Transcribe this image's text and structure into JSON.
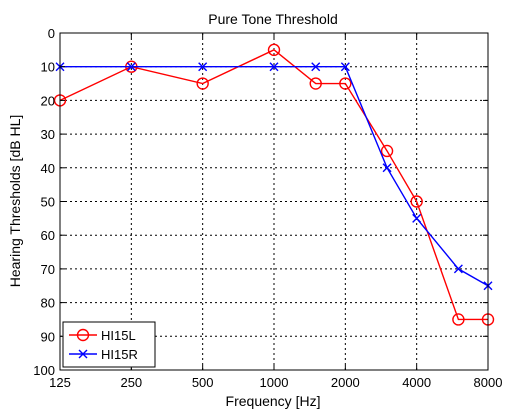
{
  "chart_data": {
    "type": "line",
    "title": "Pure Tone Threshold",
    "xlabel": "Frequency [Hz]",
    "ylabel": "Hearing Thresholds [dB HL]",
    "x_scale": "log2",
    "x_ticks": [
      125,
      250,
      500,
      1000,
      2000,
      4000,
      8000
    ],
    "x_tick_labels": [
      "125",
      "250",
      "500",
      "1000",
      "2000",
      "4000",
      "8000"
    ],
    "xlim": [
      125,
      8000
    ],
    "y_inverted": true,
    "ylim": [
      0,
      100
    ],
    "y_ticks": [
      0,
      10,
      20,
      30,
      40,
      50,
      60,
      70,
      80,
      90,
      100
    ],
    "y_tick_labels": [
      "0",
      "10",
      "20",
      "30",
      "40",
      "50",
      "60",
      "70",
      "80",
      "90",
      "100"
    ],
    "grid": true,
    "legend_position": "bottom-left",
    "series": [
      {
        "name": "HI15L",
        "color": "#ff0000",
        "marker": "circle",
        "x": [
          125,
          250,
          500,
          1000,
          1500,
          2000,
          3000,
          4000,
          6000,
          8000
        ],
        "y": [
          20,
          10,
          15,
          5,
          15,
          15,
          35,
          50,
          85,
          85
        ]
      },
      {
        "name": "HI15R",
        "color": "#0000ff",
        "marker": "x",
        "x": [
          125,
          250,
          500,
          1000,
          1500,
          2000,
          3000,
          4000,
          6000,
          8000
        ],
        "y": [
          10,
          10,
          10,
          10,
          10,
          10,
          40,
          55,
          70,
          75
        ]
      }
    ]
  }
}
